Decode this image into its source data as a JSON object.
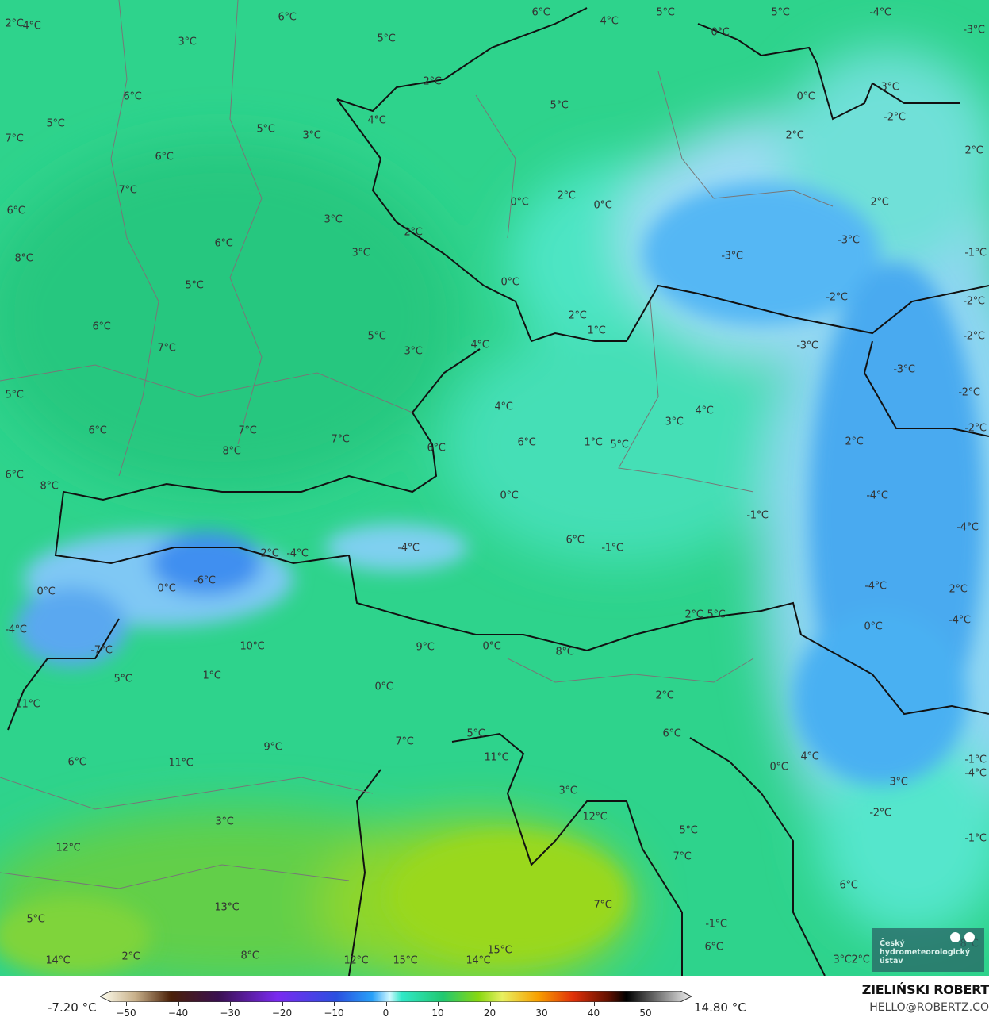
{
  "legend": {
    "min_value": "-7.20 °C",
    "max_value": "14.80 °C",
    "ticks": [
      "−50",
      "−40",
      "−30",
      "−20",
      "−10",
      "0",
      "10",
      "20",
      "30",
      "40",
      "50"
    ]
  },
  "branding": {
    "author": "ZIELIŃSKI ROBERT",
    "email": "HELLO@ROBERTZ.CO",
    "logo_text": "Český hydrometeorologický ústav"
  },
  "colors": {
    "base_green": "#2ed38c",
    "cyan": "#55e6cc",
    "blue": "#3fa6f0",
    "light_blue": "#a8e2f6",
    "yellow_green": "#8fd42a",
    "border": "#111111",
    "region_border": "#777777"
  },
  "temperature_labels": [
    "2°C",
    "4°C",
    "6°C",
    "3°C",
    "5°C",
    "6°C",
    "4°C",
    "5°C",
    "5°C",
    "-4°C",
    "-3°C",
    "6°C",
    "5°C",
    "2°C",
    "0°C",
    "3°C",
    "0°C",
    "5°C",
    "4°C",
    "-2°C",
    "7°C",
    "5°C",
    "3°C",
    "2°C",
    "2°C",
    "6°C",
    "7°C",
    "0°C",
    "2°C",
    "0°C",
    "2°C",
    "6°C",
    "3°C",
    "2°C",
    "6°C",
    "-3°C",
    "8°C",
    "3°C",
    "-3°C",
    "-1°C",
    "5°C",
    "0°C",
    "-2°C",
    "-2°C",
    "2°C",
    "1°C",
    "6°C",
    "7°C",
    "5°C",
    "3°C",
    "4°C",
    "-3°C",
    "-2°C",
    "-3°C",
    "-2°C",
    "5°C",
    "4°C",
    "3°C",
    "4°C",
    "6°C",
    "7°C",
    "7°C",
    "8°C",
    "6°C",
    "6°C",
    "1°C",
    "5°C",
    "2°C",
    "-2°C",
    "6°C",
    "8°C",
    "0°C",
    "-4°C",
    "-1°C",
    "-4°C",
    "6°C",
    "-1°C",
    "-4°C",
    "2°C",
    "-4°C",
    "0°C",
    "-6°C",
    "0°C",
    "-4°C",
    "2°C",
    "2°C",
    "5°C",
    "-4°C",
    "0°C",
    "-4°C",
    "10°C",
    "9°C",
    "0°C",
    "8°C",
    "-7°C",
    "5°C",
    "1°C",
    "0°C",
    "2°C",
    "11°C",
    "6°C",
    "5°C",
    "7°C",
    "9°C",
    "11°C",
    "6°C",
    "11°C",
    "4°C",
    "0°C",
    "-1°C",
    "-4°C",
    "3°C",
    "3°C",
    "-2°C",
    "12°C",
    "3°C",
    "5°C",
    "-1°C",
    "12°C",
    "7°C",
    "6°C",
    "7°C",
    "13°C",
    "5°C",
    "-1°C",
    "6°C",
    "15°C",
    "14°C",
    "2°C",
    "8°C",
    "12°C",
    "15°C",
    "14°C",
    "3°C",
    "2°C",
    "8°C"
  ]
}
